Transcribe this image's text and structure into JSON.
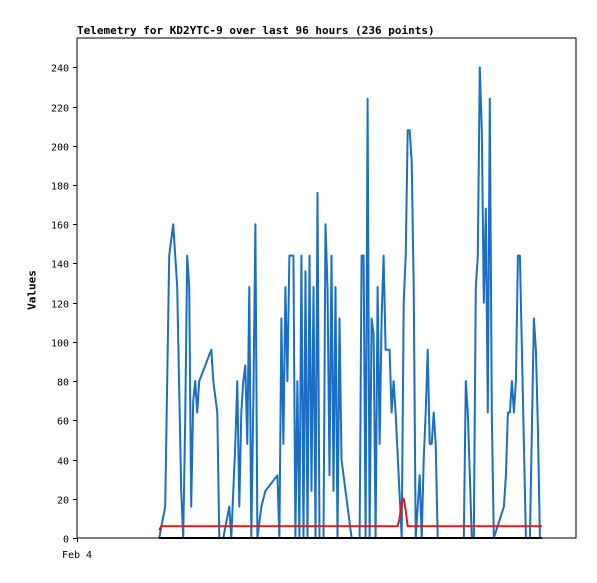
{
  "chart_data": {
    "type": "line",
    "title": "Telemetry for KD2YTC-9 over last 96 hours (236 points)",
    "xlabel": "",
    "ylabel": "Values",
    "x_ticks": [
      "Feb 4"
    ],
    "ylim": [
      0,
      255
    ],
    "y_ticks": [
      0,
      20,
      40,
      60,
      80,
      100,
      120,
      140,
      160,
      180,
      200,
      220,
      240
    ],
    "grid": false,
    "legend": "none",
    "series": [
      {
        "color": "#1a6fc4",
        "points": [
          [
            88,
            0
          ],
          [
            91,
            16
          ],
          [
            93,
            144
          ],
          [
            95,
            160
          ],
          [
            97,
            128
          ],
          [
            99,
            24
          ],
          [
            100,
            0
          ],
          [
            101,
            60
          ],
          [
            102,
            144
          ],
          [
            103,
            128
          ],
          [
            104,
            16
          ],
          [
            105,
            70
          ],
          [
            106,
            80
          ],
          [
            107,
            64
          ],
          [
            108,
            80
          ],
          [
            114,
            96
          ],
          [
            115,
            80
          ],
          [
            117,
            64
          ],
          [
            118,
            0
          ],
          [
            120,
            0
          ],
          [
            123,
            16
          ],
          [
            124,
            0
          ],
          [
            126,
            48
          ],
          [
            127,
            80
          ],
          [
            128,
            16
          ],
          [
            129,
            64
          ],
          [
            130,
            80
          ],
          [
            131,
            88
          ],
          [
            132,
            48
          ],
          [
            133,
            128
          ],
          [
            134,
            0
          ],
          [
            135,
            72
          ],
          [
            136,
            160
          ],
          [
            137,
            0
          ],
          [
            139,
            16
          ],
          [
            141,
            24
          ],
          [
            147,
            32
          ],
          [
            148,
            0
          ],
          [
            149,
            112
          ],
          [
            150,
            48
          ],
          [
            151,
            128
          ],
          [
            152,
            80
          ],
          [
            153,
            144
          ],
          [
            154,
            144
          ],
          [
            155,
            144
          ],
          [
            156,
            0
          ],
          [
            157,
            80
          ],
          [
            158,
            0
          ],
          [
            159,
            144
          ],
          [
            160,
            0
          ],
          [
            161,
            136
          ],
          [
            162,
            0
          ],
          [
            163,
            144
          ],
          [
            164,
            24
          ],
          [
            165,
            128
          ],
          [
            166,
            0
          ],
          [
            167,
            176
          ],
          [
            168,
            0
          ],
          [
            170,
            0
          ],
          [
            171,
            160
          ],
          [
            172,
            128
          ],
          [
            173,
            32
          ],
          [
            174,
            144
          ],
          [
            175,
            24
          ],
          [
            176,
            128
          ],
          [
            177,
            0
          ],
          [
            178,
            112
          ],
          [
            179,
            40
          ],
          [
            180,
            32
          ],
          [
            184,
            0
          ],
          [
            186,
            0
          ],
          [
            188,
            0
          ],
          [
            189,
            144
          ],
          [
            190,
            144
          ],
          [
            191,
            0
          ],
          [
            192,
            224
          ],
          [
            193,
            0
          ],
          [
            194,
            112
          ],
          [
            195,
            104
          ],
          [
            196,
            0
          ],
          [
            197,
            128
          ],
          [
            198,
            48
          ],
          [
            199,
            112
          ],
          [
            200,
            144
          ],
          [
            201,
            96
          ],
          [
            202,
            96
          ],
          [
            203,
            96
          ],
          [
            204,
            64
          ],
          [
            205,
            80
          ],
          [
            206,
            64
          ],
          [
            209,
            0
          ],
          [
            210,
            120
          ],
          [
            211,
            144
          ],
          [
            212,
            208
          ],
          [
            213,
            208
          ],
          [
            214,
            192
          ],
          [
            215,
            128
          ],
          [
            216,
            0
          ],
          [
            217,
            16
          ],
          [
            218,
            32
          ],
          [
            219,
            0
          ],
          [
            220,
            40
          ],
          [
            221,
            64
          ],
          [
            222,
            96
          ],
          [
            223,
            48
          ],
          [
            224,
            48
          ],
          [
            225,
            64
          ],
          [
            226,
            48
          ],
          [
            227,
            0
          ],
          [
            240,
            0
          ],
          [
            241,
            80
          ],
          [
            242,
            64
          ],
          [
            244,
            0
          ],
          [
            245,
            0
          ],
          [
            246,
            128
          ],
          [
            247,
            144
          ],
          [
            248,
            240
          ],
          [
            249,
            208
          ],
          [
            250,
            120
          ],
          [
            251,
            168
          ],
          [
            252,
            64
          ],
          [
            253,
            224
          ],
          [
            254,
            64
          ],
          [
            255,
            0
          ],
          [
            260,
            16
          ],
          [
            261,
            32
          ],
          [
            262,
            64
          ],
          [
            263,
            64
          ],
          [
            264,
            80
          ],
          [
            265,
            64
          ],
          [
            266,
            80
          ],
          [
            267,
            144
          ],
          [
            268,
            144
          ],
          [
            269,
            96
          ],
          [
            271,
            0
          ],
          [
            273,
            0
          ],
          [
            274,
            56
          ],
          [
            275,
            112
          ],
          [
            276,
            96
          ],
          [
            277,
            56
          ],
          [
            278,
            0
          ]
        ]
      },
      {
        "color": "#e81515",
        "points": [
          [
            88,
            4
          ],
          [
            89,
            6
          ],
          [
            120,
            6
          ],
          [
            160,
            6
          ],
          [
            200,
            6
          ],
          [
            207,
            6
          ],
          [
            208,
            10
          ],
          [
            209,
            18
          ],
          [
            210,
            20
          ],
          [
            211,
            14
          ],
          [
            212,
            6
          ],
          [
            240,
            6
          ],
          [
            279,
            6
          ]
        ]
      },
      {
        "color": "#000000",
        "points": [
          [
            88,
            0
          ],
          [
            279,
            0
          ]
        ]
      }
    ]
  }
}
